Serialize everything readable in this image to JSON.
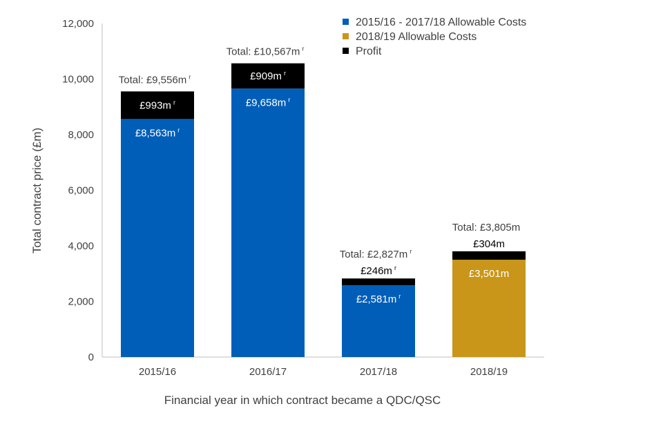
{
  "chart_data": {
    "type": "bar",
    "stacked": true,
    "categories": [
      "2015/16",
      "2016/17",
      "2017/18",
      "2018/19"
    ],
    "series": [
      {
        "name": "2015/16 - 2017/18 Allowable Costs",
        "color": "#005EB8",
        "values": [
          8563,
          9658,
          2581,
          null
        ],
        "labels": [
          "£8,563m",
          "£9,658m",
          "£2,581m",
          ""
        ],
        "label_marks": [
          "r",
          "r",
          "r",
          ""
        ]
      },
      {
        "name": "2018/19 Allowable Costs",
        "color": "#C9961A",
        "values": [
          null,
          null,
          null,
          3501
        ],
        "labels": [
          "",
          "",
          "",
          "£3,501m"
        ],
        "label_marks": [
          "",
          "",
          "",
          ""
        ]
      },
      {
        "name": "Profit",
        "color": "#000000",
        "values": [
          993,
          909,
          246,
          304
        ],
        "labels": [
          "£993m",
          "£909m",
          "£246m",
          "£304m"
        ],
        "label_marks": [
          "r",
          "r",
          "r",
          ""
        ]
      }
    ],
    "totals": {
      "values": [
        9556,
        10567,
        2827,
        3805
      ],
      "labels": [
        "Total: £9,556m",
        "Total: £10,567m",
        "Total: £2,827m",
        "Total: £3,805m"
      ],
      "marks": [
        "r",
        "r",
        "r",
        ""
      ]
    },
    "xlabel": "Financial year in which contract became a QDC/QSC",
    "ylabel": "Total contract price (£m)",
    "ylim": [
      0,
      12000
    ],
    "yticks": [
      0,
      2000,
      4000,
      6000,
      8000,
      10000,
      12000
    ],
    "ytick_labels": [
      "0",
      "2,000",
      "4,000",
      "6,000",
      "8,000",
      "10,000",
      "12,000"
    ],
    "grid": false,
    "legend_position": "top-right"
  }
}
